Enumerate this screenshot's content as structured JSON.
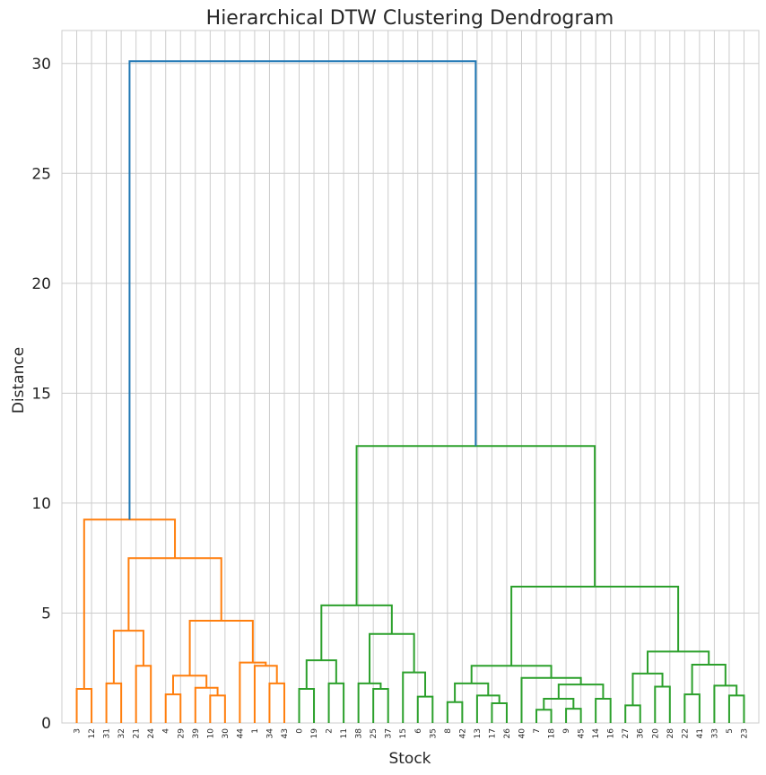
{
  "chart_data": {
    "type": "dendrogram",
    "title": "Hierarchical DTW Clustering Dendrogram",
    "xlabel": "Stock",
    "ylabel": "Distance",
    "ylim": [
      0,
      31.5
    ],
    "yticks": [
      0,
      5,
      10,
      15,
      20,
      25,
      30
    ],
    "grid": true,
    "leaf_order": [
      "3",
      "12",
      "31",
      "32",
      "21",
      "24",
      "4",
      "29",
      "39",
      "10",
      "30",
      "44",
      "1",
      "34",
      "43",
      "0",
      "19",
      "2",
      "11",
      "38",
      "25",
      "37",
      "15",
      "6",
      "35",
      "8",
      "42",
      "13",
      "17",
      "26",
      "40",
      "7",
      "18",
      "9",
      "45",
      "14",
      "16",
      "27",
      "36",
      "20",
      "28",
      "22",
      "41",
      "33",
      "5",
      "23"
    ],
    "cluster_colors": {
      "top": "#1f77b4",
      "cluster_1": "#ff7f0e",
      "cluster_2": "#2ca02c"
    },
    "merges": [
      {
        "children": [
          "3",
          "12"
        ],
        "height": 1.55,
        "color": "#ff7f0e"
      },
      {
        "children": [
          "31",
          "32"
        ],
        "height": 1.8,
        "color": "#ff7f0e"
      },
      {
        "children": [
          "21",
          "24"
        ],
        "height": 2.6,
        "color": "#ff7f0e"
      },
      {
        "children": [
          "{31,32}",
          "{21,24}"
        ],
        "height": 4.2,
        "color": "#ff7f0e"
      },
      {
        "children": [
          "4",
          "29"
        ],
        "height": 1.3,
        "color": "#ff7f0e"
      },
      {
        "children": [
          "10",
          "30"
        ],
        "height": 1.25,
        "color": "#ff7f0e"
      },
      {
        "children": [
          "39",
          "{10,30}"
        ],
        "height": 1.6,
        "color": "#ff7f0e"
      },
      {
        "children": [
          "{4,29}",
          "{39,10,30}"
        ],
        "height": 2.15,
        "color": "#ff7f0e"
      },
      {
        "children": [
          "43",
          "34"
        ],
        "height": 1.8,
        "color": "#ff7f0e"
      },
      {
        "children": [
          "1",
          "{34,43}"
        ],
        "height": 2.6,
        "color": "#ff7f0e"
      },
      {
        "children": [
          "44",
          "{1,34,43}"
        ],
        "height": 2.75,
        "color": "#ff7f0e"
      },
      {
        "children": [
          "{4..30}",
          "{44,1,34,43}"
        ],
        "height": 4.65,
        "color": "#ff7f0e"
      },
      {
        "children": [
          "{31,32,21,24}",
          "{4..43}"
        ],
        "height": 7.5,
        "color": "#ff7f0e"
      },
      {
        "children": [
          "{3,12}",
          "{31..43}"
        ],
        "height": 9.25,
        "color": "#ff7f0e"
      },
      {
        "children": [
          "0",
          "19"
        ],
        "height": 1.55,
        "color": "#2ca02c"
      },
      {
        "children": [
          "2",
          "11"
        ],
        "height": 1.8,
        "color": "#2ca02c"
      },
      {
        "children": [
          "{0,19}",
          "{2,11}"
        ],
        "height": 2.85,
        "color": "#2ca02c"
      },
      {
        "children": [
          "38",
          "{25,37}"
        ],
        "height": 1.8,
        "color": "#2ca02c"
      },
      {
        "children": [
          "25",
          "37"
        ],
        "height": 1.55,
        "color": "#2ca02c"
      },
      {
        "children": [
          "6",
          "35"
        ],
        "height": 1.2,
        "color": "#2ca02c"
      },
      {
        "children": [
          "15",
          "{6,35}"
        ],
        "height": 2.3,
        "color": "#2ca02c"
      },
      {
        "children": [
          "{38,25,37}",
          "{15,6,35}"
        ],
        "height": 4.05,
        "color": "#2ca02c"
      },
      {
        "children": [
          "{0,19,2,11}",
          "{38..35}"
        ],
        "height": 5.35,
        "color": "#2ca02c"
      },
      {
        "children": [
          "8",
          "42"
        ],
        "height": 0.95,
        "color": "#2ca02c"
      },
      {
        "children": [
          "17",
          "26"
        ],
        "height": 0.9,
        "color": "#2ca02c"
      },
      {
        "children": [
          "13",
          "{17,26}"
        ],
        "height": 1.25,
        "color": "#2ca02c"
      },
      {
        "children": [
          "{8,42}",
          "{13,17,26}"
        ],
        "height": 1.8,
        "color": "#2ca02c"
      },
      {
        "children": [
          "7",
          "18"
        ],
        "height": 0.6,
        "color": "#2ca02c"
      },
      {
        "children": [
          "9",
          "45"
        ],
        "height": 0.65,
        "color": "#2ca02c"
      },
      {
        "children": [
          "{7,18}",
          "{9,45}"
        ],
        "height": 1.1,
        "color": "#2ca02c"
      },
      {
        "children": [
          "14",
          "16"
        ],
        "height": 1.1,
        "color": "#2ca02c"
      },
      {
        "children": [
          "{7,18,9,45}",
          "{14,16}"
        ],
        "height": 1.75,
        "color": "#2ca02c"
      },
      {
        "children": [
          "40",
          "{7..16}"
        ],
        "height": 2.05,
        "color": "#2ca02c"
      },
      {
        "children": [
          "{8..26}",
          "{40..16}"
        ],
        "height": 2.6,
        "color": "#2ca02c"
      },
      {
        "children": [
          "27",
          "36"
        ],
        "height": 0.8,
        "color": "#2ca02c"
      },
      {
        "children": [
          "20",
          "28"
        ],
        "height": 1.65,
        "color": "#2ca02c"
      },
      {
        "children": [
          "{27,36}",
          "{20,28}"
        ],
        "height": 2.25,
        "color": "#2ca02c"
      },
      {
        "children": [
          "22",
          "41"
        ],
        "height": 1.3,
        "color": "#2ca02c"
      },
      {
        "children": [
          "5",
          "23"
        ],
        "height": 1.25,
        "color": "#2ca02c"
      },
      {
        "children": [
          "33",
          "{5,23}"
        ],
        "height": 1.7,
        "color": "#2ca02c"
      },
      {
        "children": [
          "{22,41}",
          "{33,5,23}"
        ],
        "height": 2.65,
        "color": "#2ca02c"
      },
      {
        "children": [
          "{27..28}",
          "{22..23}"
        ],
        "height": 3.25,
        "color": "#2ca02c"
      },
      {
        "children": [
          "{8..16}",
          "{27..23}"
        ],
        "height": 6.2,
        "color": "#2ca02c"
      },
      {
        "children": [
          "{0..35}",
          "{8..23}"
        ],
        "height": 12.6,
        "color": "#2ca02c"
      },
      {
        "children": [
          "{3..43}",
          "{0..23}"
        ],
        "height": 30.1,
        "color": "#1f77b4"
      }
    ]
  }
}
